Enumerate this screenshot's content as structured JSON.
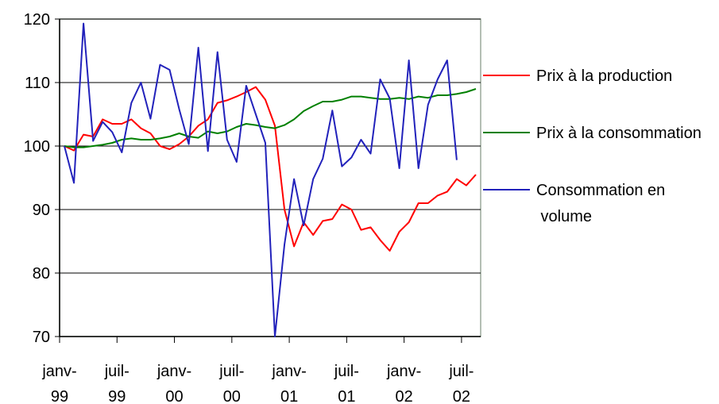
{
  "chart_data": {
    "type": "line",
    "categories": [
      "janv-99",
      null,
      null,
      null,
      null,
      null,
      "juil-99",
      null,
      null,
      null,
      null,
      null,
      "janv-00",
      null,
      null,
      null,
      null,
      null,
      "juil-00",
      null,
      null,
      null,
      null,
      null,
      "janv-01",
      null,
      null,
      null,
      null,
      null,
      "juil-01",
      null,
      null,
      null,
      null,
      null,
      "janv-02",
      null,
      null,
      null,
      null,
      null,
      "juil-02",
      null
    ],
    "series": [
      {
        "name": "Prix à la production",
        "color": "#ff0000",
        "values": [
          100,
          99.3,
          101.8,
          101.5,
          104.2,
          103.5,
          103.5,
          104.2,
          102.8,
          102,
          100,
          99.5,
          100.3,
          101.5,
          103.2,
          104.2,
          106.8,
          107.2,
          107.8,
          108.5,
          109.3,
          107.3,
          103.2,
          90,
          84.2,
          88,
          86,
          88.2,
          88.5,
          90.8,
          90,
          86.8,
          87.2,
          85.2,
          83.5,
          86.5,
          88,
          91,
          91,
          92.2,
          92.8,
          94.8,
          93.8,
          95.5
        ]
      },
      {
        "name": "Prix à la consommation",
        "color": "#008000",
        "values": [
          100,
          99.8,
          99.8,
          100,
          100.2,
          100.5,
          101,
          101.2,
          101,
          101,
          101.2,
          101.5,
          102,
          101.5,
          101.3,
          102.3,
          102,
          102.3,
          103,
          103.5,
          103.3,
          103,
          102.8,
          103.3,
          104.2,
          105.5,
          106.3,
          107,
          107,
          107.3,
          107.8,
          107.8,
          107.6,
          107.4,
          107.4,
          107.6,
          107.4,
          107.8,
          107.6,
          108,
          108,
          108.2,
          108.5,
          109
        ]
      },
      {
        "name": "Consommation en volume",
        "color": "#2222bb",
        "values": [
          100,
          94.2,
          119.3,
          100.8,
          103.8,
          102.2,
          99,
          106.8,
          110,
          104.3,
          112.8,
          112,
          105.8,
          100.3,
          115.5,
          99.2,
          114.8,
          101,
          97.5,
          109.5,
          105,
          100.5,
          70,
          84.5,
          94.8,
          87.5,
          94.8,
          98,
          105.6,
          96.8,
          98.2,
          101,
          98.8,
          110.5,
          107.5,
          96.5,
          113.5,
          96.5,
          106.5,
          110.5,
          113.5,
          97.8,
          null,
          null
        ]
      }
    ],
    "ylim": [
      70,
      120
    ],
    "yticks": [
      70,
      80,
      90,
      100,
      110,
      120
    ],
    "grid": true,
    "legend": "right"
  }
}
